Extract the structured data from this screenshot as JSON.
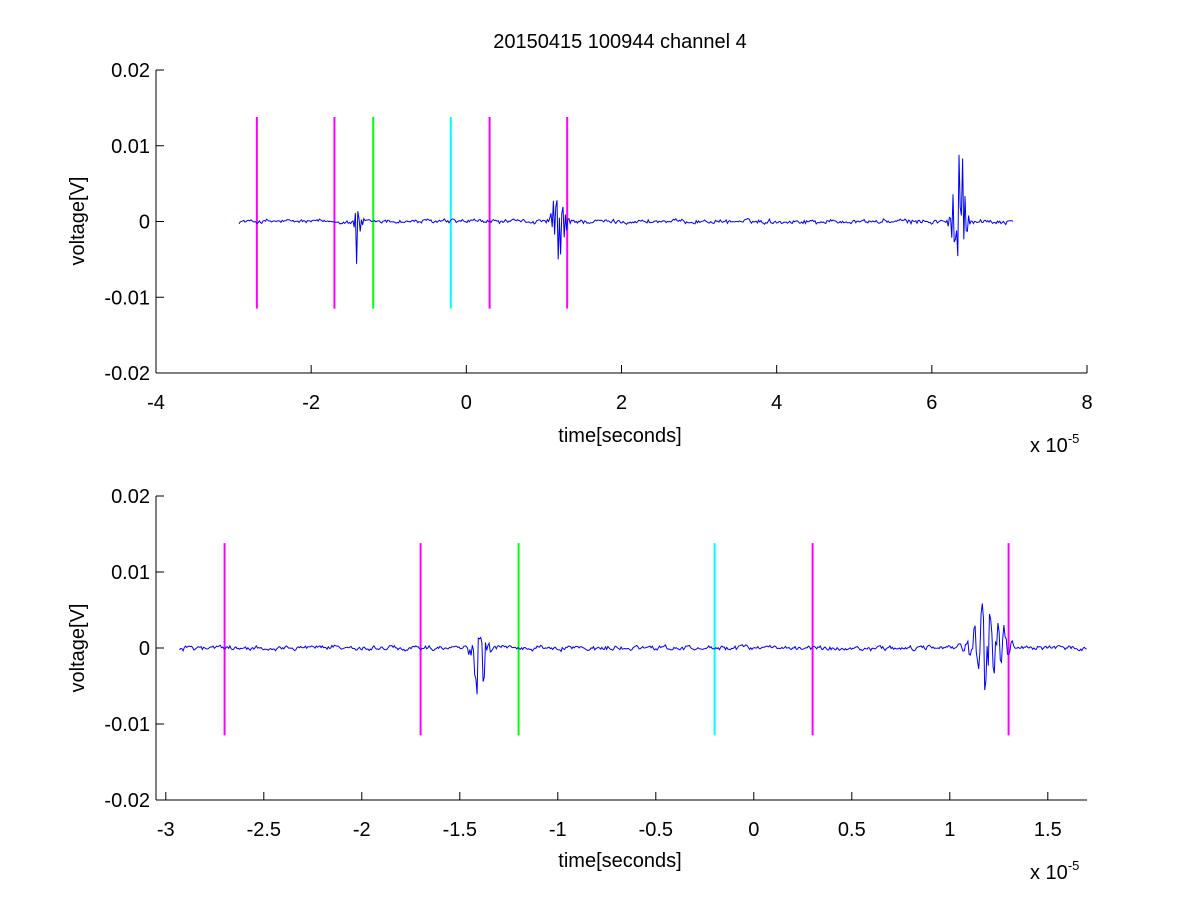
{
  "figure": {
    "title": "20150415 100944 channel 4"
  },
  "colors": {
    "signal": "#0000ff",
    "axis": "#000000",
    "background": "#ffffff"
  },
  "chart_data": [
    {
      "type": "line",
      "xlabel": "time[seconds]",
      "ylabel": "voltage[V]",
      "exponent_label": "x 10",
      "exponent_power": "-5",
      "xlim": [
        -4,
        8
      ],
      "ylim": [
        -0.02,
        0.02
      ],
      "xticks": [
        -4,
        -2,
        0,
        2,
        4,
        6,
        8
      ],
      "xtick_labels": [
        "-4",
        "-2",
        "0",
        "2",
        "4",
        "6",
        "8"
      ],
      "yticks": [
        -0.02,
        -0.01,
        0,
        0.01,
        0.02
      ],
      "ytick_labels": [
        "-0.02",
        "-0.01",
        "0",
        "0.01",
        "0.02"
      ],
      "grid": false,
      "markers": [
        {
          "x": -2.7,
          "y_range": [
            -0.0115,
            0.0138
          ],
          "color": "#ff00ff"
        },
        {
          "x": -1.7,
          "y_range": [
            -0.0115,
            0.0138
          ],
          "color": "#ff00ff"
        },
        {
          "x": -1.2,
          "y_range": [
            -0.0115,
            0.0138
          ],
          "color": "#00ff00"
        },
        {
          "x": -0.2,
          "y_range": [
            -0.0115,
            0.0138
          ],
          "color": "#00ffff"
        },
        {
          "x": 0.3,
          "y_range": [
            -0.0115,
            0.0138
          ],
          "color": "#ff00ff"
        },
        {
          "x": 1.3,
          "y_range": [
            -0.0115,
            0.0138
          ],
          "color": "#ff00ff"
        }
      ],
      "series": [
        {
          "color": "#0000ff",
          "x_range": [
            -2.93,
            7.05
          ],
          "noise_amplitude": 0.0004,
          "bursts": [
            {
              "t": -1.4,
              "peak_min": -0.0075,
              "peak_max": 0.002,
              "width": 0.1
            },
            {
              "t": 1.2,
              "peak_min": -0.0075,
              "peak_max": 0.0075,
              "width": 0.18
            },
            {
              "t": 6.35,
              "peak_min": -0.0105,
              "peak_max": 0.0125,
              "width": 0.18
            }
          ]
        }
      ]
    },
    {
      "type": "line",
      "xlabel": "time[seconds]",
      "ylabel": "voltage[V]",
      "exponent_label": "x 10",
      "exponent_power": "-5",
      "xlim": [
        -3.05,
        1.7
      ],
      "ylim": [
        -0.02,
        0.02
      ],
      "xticks": [
        -3,
        -2.5,
        -2,
        -1.5,
        -1,
        -0.5,
        0,
        0.5,
        1,
        1.5
      ],
      "xtick_labels": [
        "-3",
        "-2.5",
        "-2",
        "-1.5",
        "-1",
        "-0.5",
        "0",
        "0.5",
        "1",
        "1.5"
      ],
      "yticks": [
        -0.02,
        -0.01,
        0,
        0.01,
        0.02
      ],
      "ytick_labels": [
        "-0.02",
        "-0.01",
        "0",
        "0.01",
        "0.02"
      ],
      "grid": false,
      "markers": [
        {
          "x": -2.7,
          "y_range": [
            -0.0115,
            0.0138
          ],
          "color": "#ff00ff"
        },
        {
          "x": -1.7,
          "y_range": [
            -0.0115,
            0.0138
          ],
          "color": "#ff00ff"
        },
        {
          "x": -1.2,
          "y_range": [
            -0.0115,
            0.0138
          ],
          "color": "#00ff00"
        },
        {
          "x": -0.2,
          "y_range": [
            -0.0115,
            0.0138
          ],
          "color": "#00ffff"
        },
        {
          "x": 0.3,
          "y_range": [
            -0.0115,
            0.0138
          ],
          "color": "#ff00ff"
        },
        {
          "x": 1.3,
          "y_range": [
            -0.0115,
            0.0138
          ],
          "color": "#ff00ff"
        }
      ],
      "series": [
        {
          "color": "#0000ff",
          "x_range": [
            -2.93,
            1.7
          ],
          "noise_amplitude": 0.0004,
          "bursts": [
            {
              "t": -1.4,
              "peak_min": -0.0075,
              "peak_max": 0.002,
              "width": 0.1
            },
            {
              "t": 1.2,
              "peak_min": -0.0075,
              "peak_max": 0.0075,
              "width": 0.18
            }
          ]
        }
      ]
    }
  ]
}
